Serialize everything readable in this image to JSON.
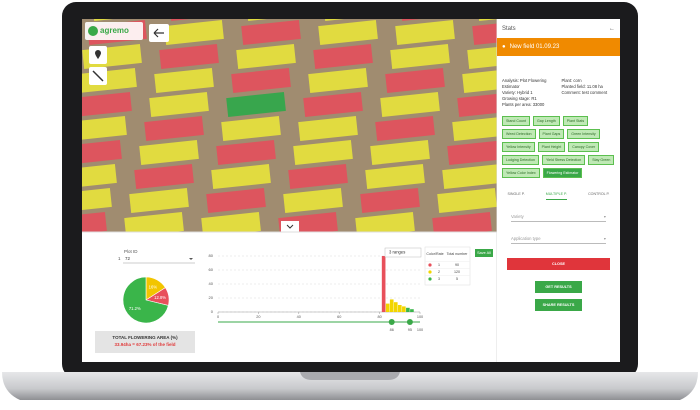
{
  "map": {
    "logo": "agremo"
  },
  "stats_panel": {
    "title": "Stats",
    "field_name": "New field 01.09.23",
    "info_left": [
      "Analysis: Plot Flowering",
      "Estimator",
      "Variety: Hybrid 1",
      "Growing stage: R1",
      "Plants per area: 33000"
    ],
    "info_right": [
      "Plant: corn",
      "Planted field: 11.08 ha",
      "Comment: test comment"
    ],
    "tags": [
      "Stand Count",
      "Gap Length",
      "Plant Stats",
      "Weed Detection",
      "Plant Gaps",
      "Green Intensity",
      "Yellow Intensity",
      "Plant Height",
      "Canopy Cover",
      "Lodging Detection",
      "Yield Stress Detection",
      "Stay Green",
      "Yellow Color Index"
    ],
    "selected_tag": "Flowering Estimator",
    "tabs": [
      "SINGLE P.",
      "MULTIPLE P.",
      "CONTROL P."
    ],
    "active_tab": 1,
    "fields": [
      "Variety",
      "Application type"
    ],
    "buttons": {
      "close": "CLOSE",
      "get_results": "GET RESULTS",
      "share_results": "SHARE RESULTS"
    }
  },
  "bottom_panel": {
    "plot_id_label": "Plot ID",
    "page": "1",
    "plot_id": "72",
    "pie": {
      "values": [
        16,
        12.8,
        71.2
      ],
      "value_labels": [
        "16%",
        "12.8%",
        "71.2%"
      ],
      "colors": [
        "#f2c500",
        "#e8505b",
        "#3ab54a"
      ]
    },
    "total_title": "TOTAL FLOWERING AREA (%)",
    "total_value": "33.94ha = 67.23% of the field",
    "histogram": {
      "range_select": "3 ranges",
      "xlim": [
        0,
        100
      ],
      "ylim": [
        0,
        80
      ],
      "xticks": [
        0,
        20,
        40,
        60,
        80,
        100
      ],
      "yticks": [
        0,
        20,
        40,
        60,
        80
      ],
      "x": [
        82,
        84,
        86,
        88,
        90,
        92,
        94,
        96
      ],
      "values": [
        80,
        12,
        18,
        14,
        10,
        8,
        6,
        4
      ],
      "colors": [
        "#e8505b",
        "#f2d500",
        "#f2d500",
        "#f2d500",
        "#f2d500",
        "#f2d500",
        "#3ab54a",
        "#3ab54a"
      ]
    },
    "slider": {
      "values": [
        86,
        95,
        100
      ]
    },
    "table": {
      "headers": [
        "Color/Rate",
        "Total number"
      ],
      "rows": [
        [
          "1",
          "90"
        ],
        [
          "2",
          "120"
        ],
        [
          "3",
          "5"
        ]
      ],
      "colors": [
        "#e8505b",
        "#f2d500",
        "#3ab54a"
      ]
    },
    "save_button": "Save All"
  }
}
